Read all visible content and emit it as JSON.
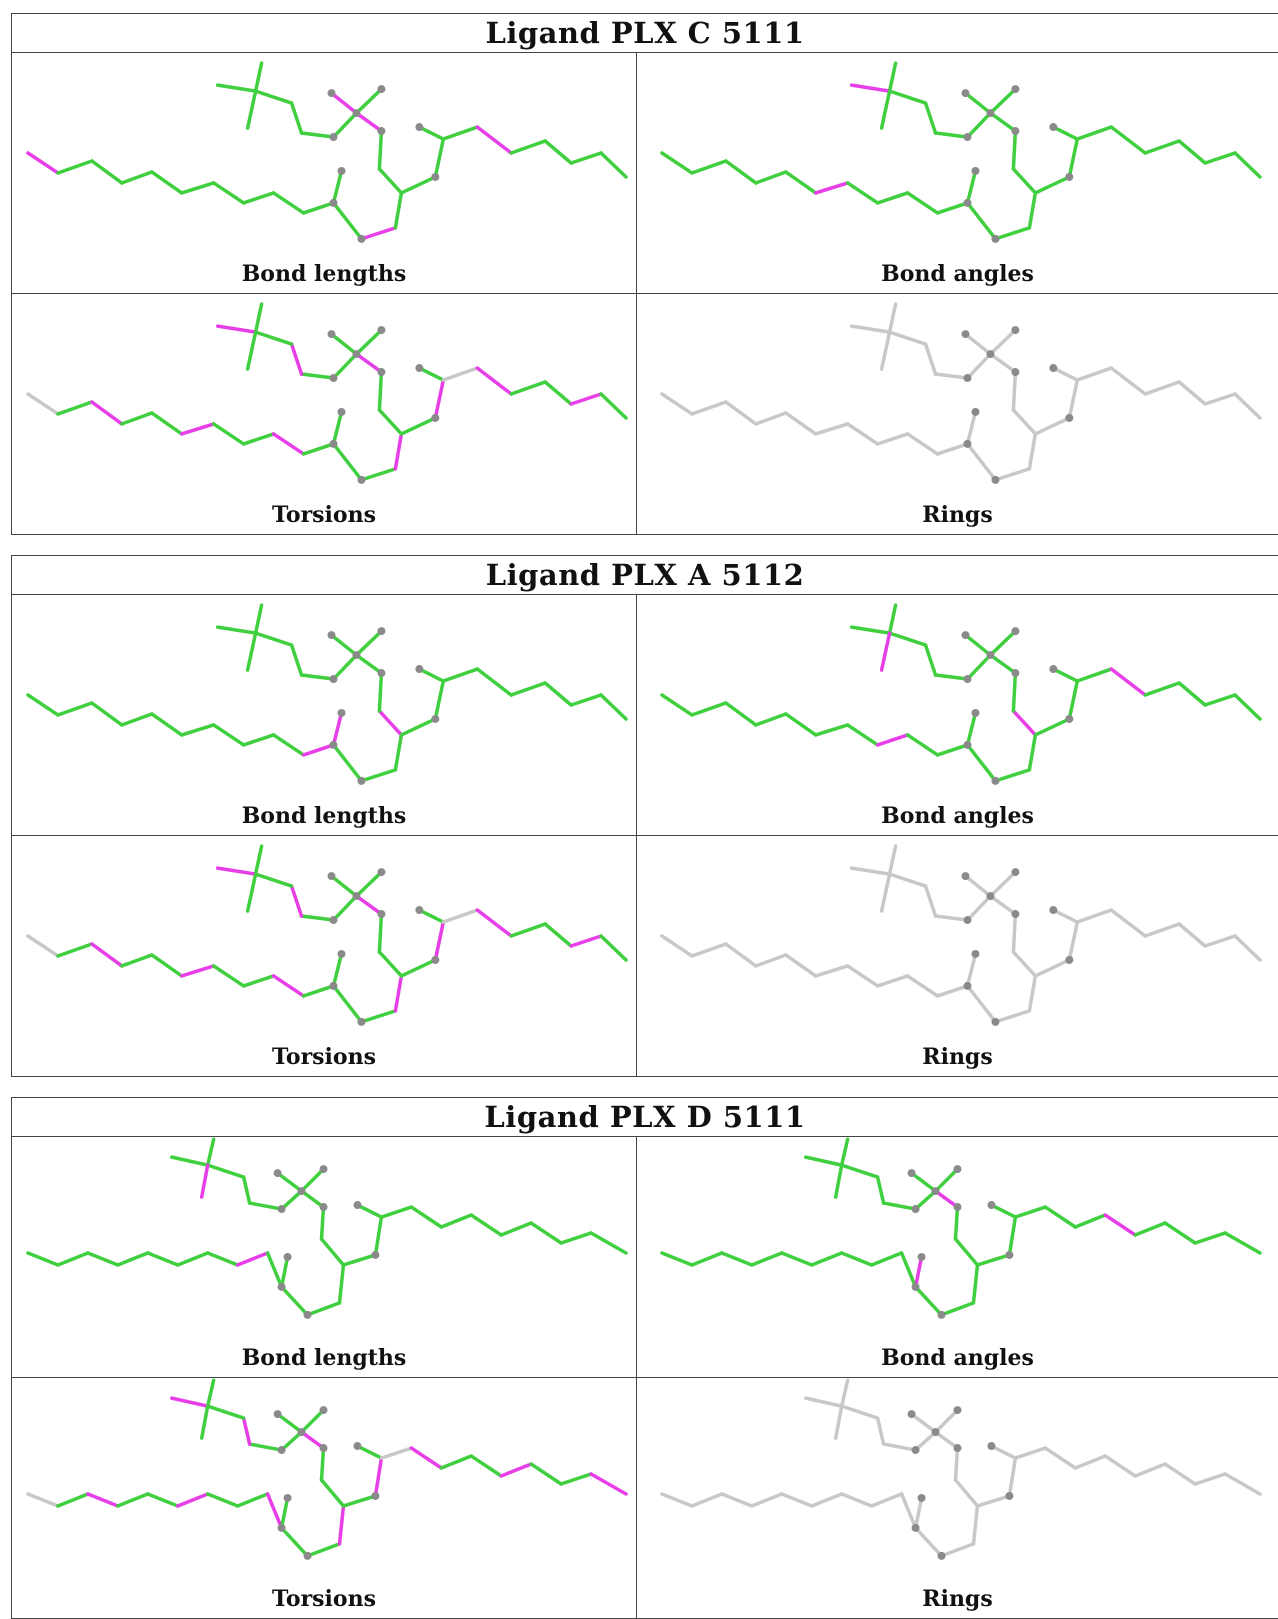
{
  "blocks": [
    {
      "title": "Ligand PLX C 5111",
      "panels": [
        {
          "caption": "Bond lengths",
          "mode": "lengths"
        },
        {
          "caption": "Bond angles",
          "mode": "angles"
        },
        {
          "caption": "Torsions",
          "mode": "torsions"
        },
        {
          "caption": "Rings",
          "mode": "rings"
        }
      ]
    },
    {
      "title": "Ligand PLX A 5112",
      "panels": [
        {
          "caption": "Bond lengths",
          "mode": "lengths"
        },
        {
          "caption": "Bond angles",
          "mode": "angles"
        },
        {
          "caption": "Torsions",
          "mode": "torsions"
        },
        {
          "caption": "Rings",
          "mode": "rings"
        }
      ]
    },
    {
      "title": "Ligand PLX D 5111",
      "panels": [
        {
          "caption": "Bond lengths",
          "mode": "lengths"
        },
        {
          "caption": "Bond angles",
          "mode": "angles"
        },
        {
          "caption": "Torsions",
          "mode": "torsions"
        },
        {
          "caption": "Rings",
          "mode": "rings"
        }
      ]
    }
  ],
  "colors": {
    "ok": "#3fcf3f",
    "outlier": "#e83ee8",
    "neutral": "#c8c8c8",
    "atom": "#8a8a8a",
    "border": "#444444"
  }
}
